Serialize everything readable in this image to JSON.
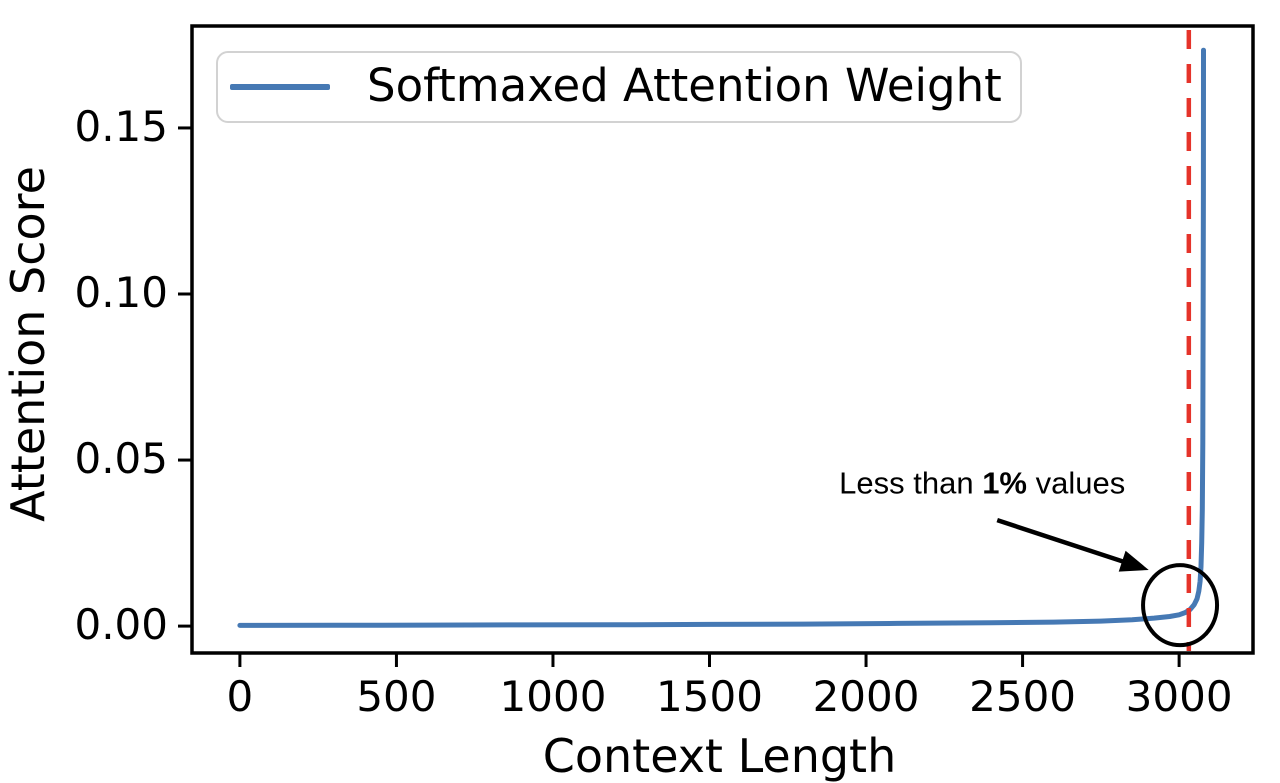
{
  "figure": {
    "background": "#ffffff",
    "text_color": "#000000"
  },
  "chart_data": {
    "type": "line",
    "xlabel": "Context Length",
    "ylabel": "Attention Score",
    "xlim": [
      -153,
      3236
    ],
    "ylim": [
      -0.0081,
      0.1807
    ],
    "grid": false,
    "x_ticks": [
      {
        "v": 0,
        "label": "0"
      },
      {
        "v": 500,
        "label": "500"
      },
      {
        "v": 1000,
        "label": "1000"
      },
      {
        "v": 1500,
        "label": "1500"
      },
      {
        "v": 2000,
        "label": "2000"
      },
      {
        "v": 2500,
        "label": "2500"
      },
      {
        "v": 3000,
        "label": "3000"
      }
    ],
    "y_ticks": [
      {
        "v": 0.0,
        "label": "0.00"
      },
      {
        "v": 0.05,
        "label": "0.05"
      },
      {
        "v": 0.1,
        "label": "0.10"
      },
      {
        "v": 0.15,
        "label": "0.15"
      }
    ],
    "legend": {
      "position": "upper-left",
      "entries": [
        {
          "label": "Softmaxed Attention Weight",
          "color": "#4679b4"
        }
      ]
    },
    "series": [
      {
        "name": "Softmaxed Attention Weight",
        "color": "#4679b4",
        "line_width": 5,
        "points": [
          [
            0,
            0.0002
          ],
          [
            300,
            0.00025
          ],
          [
            600,
            0.0003
          ],
          [
            900,
            0.00035
          ],
          [
            1200,
            0.0004
          ],
          [
            1500,
            0.0005
          ],
          [
            1800,
            0.0006
          ],
          [
            2100,
            0.0008
          ],
          [
            2400,
            0.001
          ],
          [
            2600,
            0.0012
          ],
          [
            2750,
            0.0015
          ],
          [
            2850,
            0.0019
          ],
          [
            2920,
            0.0024
          ],
          [
            2970,
            0.0029
          ],
          [
            3000,
            0.0034
          ],
          [
            3020,
            0.0041
          ],
          [
            3035,
            0.005
          ],
          [
            3048,
            0.0064
          ],
          [
            3057,
            0.0082
          ],
          [
            3063,
            0.0105
          ],
          [
            3067,
            0.0135
          ],
          [
            3070,
            0.018
          ],
          [
            3072,
            0.025
          ],
          [
            3074,
            0.035
          ],
          [
            3075.5,
            0.055
          ],
          [
            3076.5,
            0.09
          ],
          [
            3077.5,
            0.13
          ],
          [
            3078,
            0.1734
          ]
        ]
      }
    ],
    "vline": {
      "x": 3031,
      "color": "#e5332a",
      "style": "dashed",
      "width": 4.5
    },
    "annotation": {
      "text_prefix": "Less than ",
      "text_bold": "1%",
      "text_suffix": " values",
      "text_center": [
        2371,
        0.0431
      ],
      "arrow_start": [
        2419,
        0.0319
      ],
      "arrow_end": [
        2903,
        0.0169
      ],
      "circle_center": [
        3003,
        0.0063
      ],
      "circle_radius_px": [
        37,
        40
      ],
      "color": "#000000"
    }
  }
}
